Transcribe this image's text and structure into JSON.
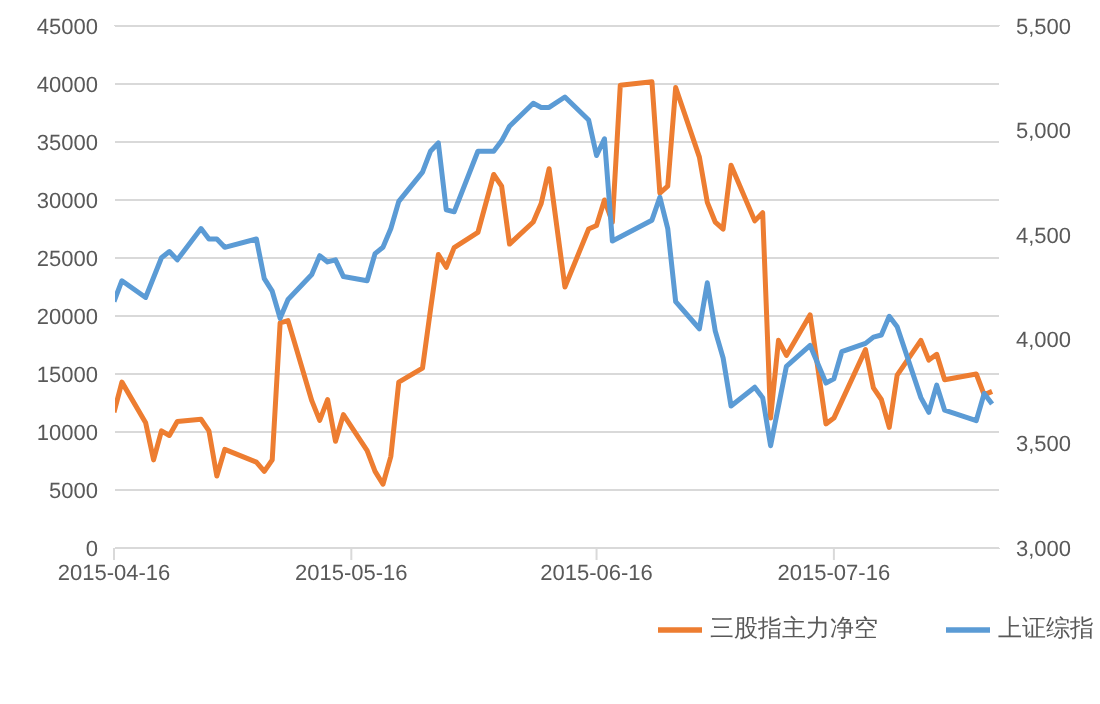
{
  "chart_data": {
    "type": "line",
    "xlim": [
      "2015-04-16",
      "2015-08-06"
    ],
    "xticks": [
      "2015-04-16",
      "2015-05-16",
      "2015-06-16",
      "2015-07-16"
    ],
    "ylim": [
      0,
      45000
    ],
    "yticks": [
      0,
      5000,
      10000,
      15000,
      20000,
      25000,
      30000,
      35000,
      40000,
      45000
    ],
    "y2lim": [
      3000,
      5500
    ],
    "y2ticks": [
      {
        "value": 3000,
        "label": "3,000"
      },
      {
        "value": 3500,
        "label": "3,500"
      },
      {
        "value": 4000,
        "label": "4,000"
      },
      {
        "value": 4500,
        "label": "4,500"
      },
      {
        "value": 5000,
        "label": "5,000"
      },
      {
        "value": 5500,
        "label": "5,500"
      }
    ],
    "grid": "y",
    "legend": "bottom",
    "marker": "none",
    "line_style": "solid",
    "series": [
      {
        "name": "三股指主力净空",
        "color": "#ed7d31",
        "x": [
          "2015-04-16",
          "2015-04-17",
          "2015-04-20",
          "2015-04-21",
          "2015-04-22",
          "2015-04-23",
          "2015-04-24",
          "2015-04-27",
          "2015-04-28",
          "2015-04-29",
          "2015-04-30",
          "2015-05-04",
          "2015-05-05",
          "2015-05-06",
          "2015-05-07",
          "2015-05-08",
          "2015-05-11",
          "2015-05-12",
          "2015-05-13",
          "2015-05-14",
          "2015-05-15",
          "2015-05-18",
          "2015-05-19",
          "2015-05-20",
          "2015-05-21",
          "2015-05-22",
          "2015-05-25",
          "2015-05-26",
          "2015-05-27",
          "2015-05-28",
          "2015-05-29",
          "2015-06-01",
          "2015-06-03",
          "2015-06-04",
          "2015-06-05",
          "2015-06-08",
          "2015-06-09",
          "2015-06-10",
          "2015-06-12",
          "2015-06-15",
          "2015-06-16",
          "2015-06-17",
          "2015-06-18",
          "2015-06-19",
          "2015-06-23",
          "2015-06-24",
          "2015-06-25",
          "2015-06-26",
          "2015-06-29",
          "2015-06-30",
          "2015-07-01",
          "2015-07-02",
          "2015-07-03",
          "2015-07-06",
          "2015-07-07",
          "2015-07-08",
          "2015-07-09",
          "2015-07-10",
          "2015-07-13",
          "2015-07-15",
          "2015-07-16",
          "2015-07-20",
          "2015-07-21",
          "2015-07-22",
          "2015-07-23",
          "2015-07-24",
          "2015-07-27",
          "2015-07-28",
          "2015-07-29",
          "2015-07-30",
          "2015-08-03",
          "2015-08-04",
          "2015-08-05"
        ],
        "values": [
          11700,
          14300,
          10800,
          7600,
          10100,
          9700,
          10900,
          11100,
          10100,
          6200,
          8500,
          7400,
          6600,
          7600,
          19400,
          19600,
          12700,
          11000,
          12800,
          9200,
          11500,
          8400,
          6600,
          5500,
          7900,
          14300,
          15500,
          20500,
          25300,
          24200,
          25900,
          27200,
          32200,
          31200,
          26200,
          28100,
          29700,
          32700,
          22500,
          27500,
          27800,
          30000,
          28100,
          39900,
          40200,
          30600,
          31200,
          39700,
          33700,
          29800,
          28100,
          27500,
          33000,
          28200,
          28900,
          11200,
          17900,
          16600,
          20100,
          10700,
          11200,
          17100,
          13800,
          12800,
          10400,
          14900,
          17900,
          16200,
          16700,
          14500,
          15000,
          13200,
          13500
        ]
      },
      {
        "name": "上证综指",
        "color": "#5b9bd5",
        "axis": "y2",
        "x": [
          "2015-04-16",
          "2015-04-17",
          "2015-04-20",
          "2015-04-22",
          "2015-04-23",
          "2015-04-24",
          "2015-04-27",
          "2015-04-28",
          "2015-04-29",
          "2015-04-30",
          "2015-05-04",
          "2015-05-05",
          "2015-05-06",
          "2015-05-07",
          "2015-05-08",
          "2015-05-11",
          "2015-05-12",
          "2015-05-13",
          "2015-05-14",
          "2015-05-15",
          "2015-05-18",
          "2015-05-19",
          "2015-05-20",
          "2015-05-21",
          "2015-05-22",
          "2015-05-25",
          "2015-05-26",
          "2015-05-27",
          "2015-05-28",
          "2015-05-29",
          "2015-06-01",
          "2015-06-03",
          "2015-06-04",
          "2015-06-05",
          "2015-06-08",
          "2015-06-09",
          "2015-06-10",
          "2015-06-12",
          "2015-06-15",
          "2015-06-16",
          "2015-06-17",
          "2015-06-18",
          "2015-06-23",
          "2015-06-24",
          "2015-06-25",
          "2015-06-26",
          "2015-06-29",
          "2015-06-30",
          "2015-07-01",
          "2015-07-02",
          "2015-07-03",
          "2015-07-06",
          "2015-07-07",
          "2015-07-08",
          "2015-07-10",
          "2015-07-13",
          "2015-07-15",
          "2015-07-16",
          "2015-07-17",
          "2015-07-20",
          "2015-07-21",
          "2015-07-22",
          "2015-07-23",
          "2015-07-24",
          "2015-07-27",
          "2015-07-28",
          "2015-07-29",
          "2015-07-30",
          "2015-08-03",
          "2015-08-04",
          "2015-08-05"
        ],
        "values": [
          4180,
          4280,
          4200,
          4390,
          4420,
          4380,
          4530,
          4480,
          4480,
          4440,
          4480,
          4290,
          4230,
          4100,
          4190,
          4310,
          4400,
          4370,
          4380,
          4300,
          4280,
          4410,
          4440,
          4530,
          4660,
          4800,
          4900,
          4940,
          4620,
          4610,
          4900,
          4900,
          4950,
          5020,
          5130,
          5110,
          5110,
          5160,
          5050,
          4880,
          4960,
          4470,
          4570,
          4680,
          4530,
          4180,
          4050,
          4270,
          4040,
          3910,
          3680,
          3770,
          3720,
          3490,
          3870,
          3970,
          3790,
          3810,
          3940,
          3980,
          4010,
          4020,
          4110,
          4060,
          3720,
          3650,
          3780,
          3660,
          3610,
          3740,
          3690
        ]
      }
    ]
  }
}
